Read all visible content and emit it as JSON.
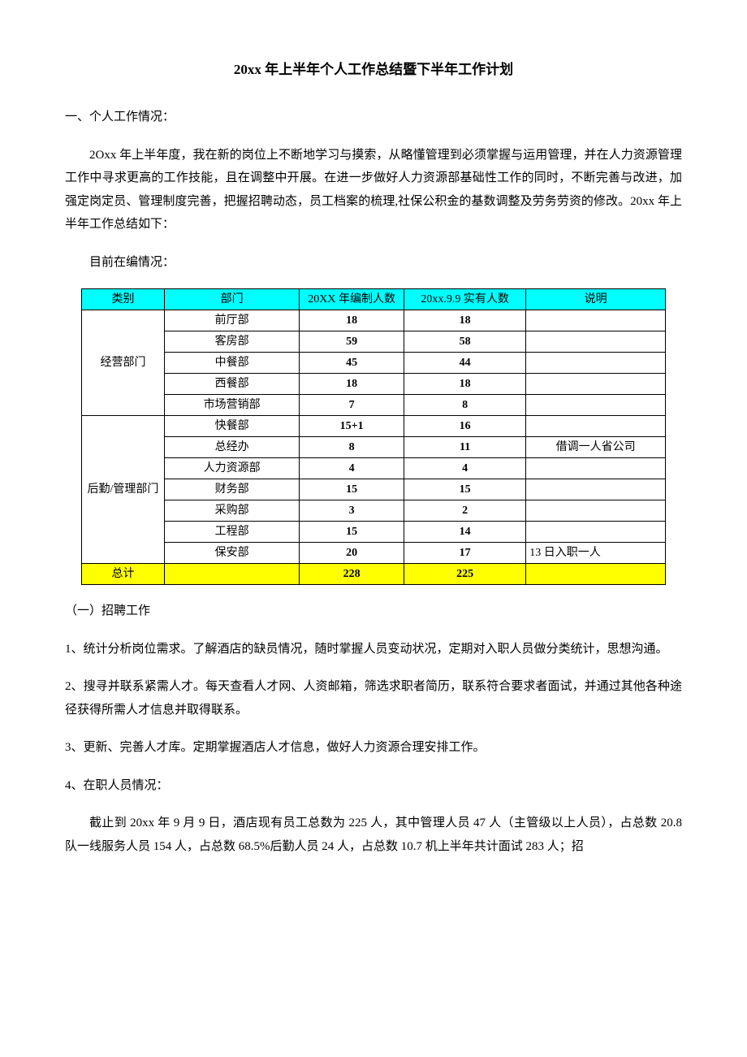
{
  "title": "20xx 年上半年个人工作总结暨下半年工作计划",
  "section1_heading": "一、个人工作情况：",
  "intro_paragraph": "2Oxx 年上半年度，我在新的岗位上不断地学习与摸索，从略懂管理到必须掌握与运用管理，并在人力资源管理工作中寻求更高的工作技能，且在调整中开展。在进一步做好人力资源部基础性工作的同时，不断完善与改进，加强定岗定员、管理制度完善，把握招聘动态，员工档案的梳理,社保公积金的基数调整及劳务劳资的修改。20xx 年上半年工作总结如下：",
  "status_line": "目前在编情况：",
  "table": {
    "headers": {
      "category": "类别",
      "department": "部门",
      "planned": "20XX 年编制人数",
      "actual": "20xx.9.9 实有人数",
      "note": "说明"
    },
    "groups": [
      {
        "category": "经营部门",
        "rows": [
          {
            "dept": "前厅部",
            "planned": "18",
            "actual": "18",
            "note": ""
          },
          {
            "dept": "客房部",
            "planned": "59",
            "actual": "58",
            "note": ""
          },
          {
            "dept": "中餐部",
            "planned": "45",
            "actual": "44",
            "note": ""
          },
          {
            "dept": "西餐部",
            "planned": "18",
            "actual": "18",
            "note": ""
          },
          {
            "dept": "市场营销部",
            "planned": "7",
            "actual": "8",
            "note": ""
          }
        ]
      },
      {
        "category": "后勤/管理部门",
        "rows": [
          {
            "dept": "快餐部",
            "planned": "15+1",
            "actual": "16",
            "note": ""
          },
          {
            "dept": "总经办",
            "planned": "8",
            "actual": "11",
            "note": "借调一人省公司"
          },
          {
            "dept": "人力资源部",
            "planned": "4",
            "actual": "4",
            "note": ""
          },
          {
            "dept": "财务部",
            "planned": "15",
            "actual": "15",
            "note": ""
          },
          {
            "dept": "采购部",
            "planned": "3",
            "actual": "2",
            "note": ""
          },
          {
            "dept": "工程部",
            "planned": "15",
            "actual": "14",
            "note": ""
          },
          {
            "dept": "保安部",
            "planned": "20",
            "actual": "17",
            "note": "13 日入职一人"
          }
        ]
      }
    ],
    "total": {
      "label": "总计",
      "planned": "228",
      "actual": "225",
      "note": ""
    },
    "colors": {
      "header_bg": "#00ffff",
      "total_bg": "#ffff00",
      "border": "#000000"
    }
  },
  "subsection1": "（一）招聘工作",
  "item1": "1、统计分析岗位需求。了解酒店的缺员情况，随时掌握人员变动状况，定期对入职人员做分类统计，思想沟通。",
  "item2": "2、搜寻并联系紧需人才。每天查看人才网、人资邮箱，筛选求职者简历，联系符合要求者面试，并通过其他各种途径获得所需人才信息并取得联系。",
  "item3": "3、更新、完善人才库。定期掌握酒店人才信息，做好人力资源合理安排工作。",
  "item4_heading": "4、在职人员情况：",
  "item4_body": "截止到 20xx 年 9 月 9 日，酒店现有员工总数为 225 人，其中管理人员 47 人（主管级以上人员），占总数 20.8 队一线服务人员 154 人，占总数 68.5%后勤人员 24 人，占总数 10.7 机上半年共计面试 283 人；招"
}
